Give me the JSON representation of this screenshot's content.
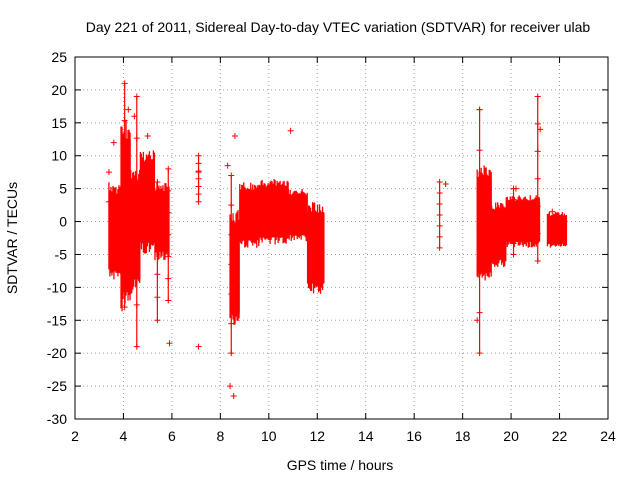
{
  "chart_data": {
    "type": "scatter",
    "title": "Day 221 of 2011, Sidereal Day-to-day VTEC variation (SDTVAR) for receiver ulab",
    "xlabel": "GPS time / hours",
    "ylabel": "SDTVAR / TECUs",
    "xlim": [
      2,
      24
    ],
    "ylim": [
      -30,
      25
    ],
    "xticks": [
      2,
      4,
      6,
      8,
      10,
      12,
      14,
      16,
      18,
      20,
      22,
      24
    ],
    "yticks": [
      25,
      20,
      15,
      10,
      5,
      0,
      -5,
      -10,
      -15,
      -20,
      -25,
      -30
    ],
    "grid": true,
    "marker": "plus",
    "series_color": "#ff0000",
    "bands": [
      {
        "x_start": 3.4,
        "x_end": 3.9,
        "y_low": -9,
        "y_high": 6
      },
      {
        "x_start": 3.9,
        "x_end": 4.3,
        "y_low": -14,
        "y_high": 16
      },
      {
        "x_start": 4.3,
        "x_end": 4.7,
        "y_low": -11,
        "y_high": 8
      },
      {
        "x_start": 4.7,
        "x_end": 5.3,
        "y_low": -5,
        "y_high": 11
      },
      {
        "x_start": 5.3,
        "x_end": 5.9,
        "y_low": -6,
        "y_high": 6
      },
      {
        "x_start": 8.4,
        "x_end": 8.8,
        "y_low": -16,
        "y_high": 2
      },
      {
        "x_start": 8.8,
        "x_end": 9.6,
        "y_low": -4,
        "y_high": 6
      },
      {
        "x_start": 9.6,
        "x_end": 10.8,
        "y_low": -3.5,
        "y_high": 6.5
      },
      {
        "x_start": 10.8,
        "x_end": 11.6,
        "y_low": -3,
        "y_high": 5
      },
      {
        "x_start": 11.6,
        "x_end": 12.3,
        "y_low": -11,
        "y_high": 3
      },
      {
        "x_start": 18.6,
        "x_end": 19.2,
        "y_low": -10,
        "y_high": 9
      },
      {
        "x_start": 19.2,
        "x_end": 19.8,
        "y_low": -7,
        "y_high": 3
      },
      {
        "x_start": 19.8,
        "x_end": 21.2,
        "y_low": -4,
        "y_high": 4
      },
      {
        "x_start": 21.5,
        "x_end": 22.3,
        "y_low": -4,
        "y_high": 1.5
      }
    ],
    "spikes": [
      {
        "x": 4.05,
        "y_low": -13,
        "y_high": 21
      },
      {
        "x": 4.55,
        "y_low": -19,
        "y_high": 19
      },
      {
        "x": 5.4,
        "y_low": -15,
        "y_high": 6
      },
      {
        "x": 5.85,
        "y_low": -12,
        "y_high": 8
      },
      {
        "x": 7.1,
        "y_low": 3,
        "y_high": 10
      },
      {
        "x": 8.45,
        "y_low": -20,
        "y_high": 7
      },
      {
        "x": 17.05,
        "y_low": -4,
        "y_high": 6
      },
      {
        "x": 18.7,
        "y_low": -20,
        "y_high": 17
      },
      {
        "x": 21.1,
        "y_low": -6,
        "y_high": 19
      },
      {
        "x": 20.1,
        "y_low": -5,
        "y_high": 5
      }
    ],
    "outliers": [
      {
        "x": 3.4,
        "y": 7.5
      },
      {
        "x": 3.4,
        "y": 3
      },
      {
        "x": 3.6,
        "y": 12
      },
      {
        "x": 4.2,
        "y": 17
      },
      {
        "x": 4.45,
        "y": 16
      },
      {
        "x": 5.0,
        "y": 13
      },
      {
        "x": 5.9,
        "y": -18.5
      },
      {
        "x": 7.1,
        "y": -19
      },
      {
        "x": 7.1,
        "y": 7.5
      },
      {
        "x": 8.3,
        "y": 8.5
      },
      {
        "x": 8.4,
        "y": -25
      },
      {
        "x": 8.55,
        "y": -26.5
      },
      {
        "x": 8.6,
        "y": 13
      },
      {
        "x": 10.9,
        "y": 13.8
      },
      {
        "x": 17.3,
        "y": 5.7
      },
      {
        "x": 18.6,
        "y": -15
      },
      {
        "x": 18.7,
        "y": 17
      },
      {
        "x": 20.2,
        "y": 5
      },
      {
        "x": 21.2,
        "y": 14
      },
      {
        "x": 21.7,
        "y": 1.5
      }
    ]
  }
}
